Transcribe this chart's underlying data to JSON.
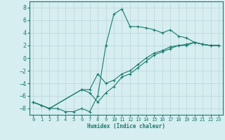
{
  "xlabel": "Humidex (Indice chaleur)",
  "ylabel": "",
  "background_color": "#d6eef0",
  "grid_color": "#c0d8dc",
  "line_color": "#1a7a6e",
  "xlim": [
    -0.5,
    23.5
  ],
  "ylim": [
    -9,
    9
  ],
  "xticks": [
    0,
    1,
    2,
    3,
    4,
    5,
    6,
    7,
    8,
    9,
    10,
    11,
    12,
    13,
    14,
    15,
    16,
    17,
    18,
    19,
    20,
    21,
    22,
    23
  ],
  "yticks": [
    -8,
    -6,
    -4,
    -2,
    0,
    2,
    4,
    6,
    8
  ],
  "series": [
    {
      "x": [
        0,
        1,
        2,
        3,
        4,
        5,
        6,
        7,
        8,
        9,
        10,
        11,
        12,
        13,
        14,
        15,
        16,
        17,
        18,
        19,
        20,
        21,
        22,
        23
      ],
      "y": [
        -7,
        -7.5,
        -8,
        -8,
        -8.5,
        -8.5,
        -8,
        -8.5,
        -6,
        2,
        7,
        7.8,
        5,
        5,
        4.8,
        4.5,
        4,
        4.5,
        3.5,
        3.2,
        2.5,
        2.2,
        2,
        2
      ]
    },
    {
      "x": [
        0,
        2,
        6,
        7,
        8,
        9,
        10,
        11,
        12,
        13,
        14,
        15,
        16,
        17,
        18,
        19,
        20,
        21,
        22,
        23
      ],
      "y": [
        -7,
        -8,
        -5,
        -5.5,
        -7,
        -5.5,
        -4.5,
        -3,
        -2.5,
        -1.5,
        -0.5,
        0.5,
        1,
        1.5,
        2,
        2,
        2.5,
        2.2,
        2,
        2
      ]
    },
    {
      "x": [
        0,
        2,
        6,
        7,
        8,
        9,
        10,
        11,
        12,
        13,
        14,
        15,
        16,
        17,
        18,
        19,
        20,
        21,
        22,
        23
      ],
      "y": [
        -7,
        -8,
        -5,
        -5,
        -2.5,
        -4,
        -3.5,
        -2.5,
        -2,
        -1,
        0,
        0.8,
        1.2,
        1.8,
        2,
        2.2,
        2.5,
        2.2,
        2,
        2
      ]
    }
  ]
}
